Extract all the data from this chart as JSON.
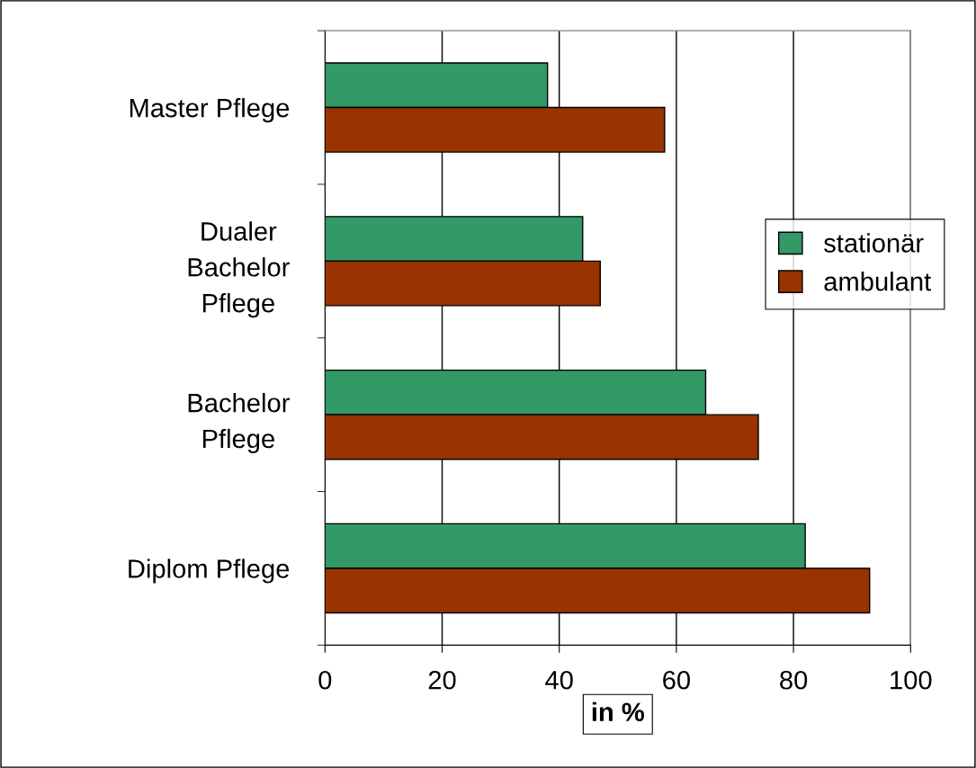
{
  "chart_data": {
    "type": "bar",
    "orientation": "horizontal",
    "categories": [
      "Master Pflege",
      "Dualer\nBachelor\nPflege",
      "Bachelor\nPflege",
      "Diplom Pflege"
    ],
    "series": [
      {
        "name": "stationär",
        "color": "#339966",
        "values": [
          38,
          44,
          65,
          82
        ]
      },
      {
        "name": "ambulant",
        "color": "#993300",
        "values": [
          58,
          47,
          74,
          93
        ]
      }
    ],
    "xlabel": "in %",
    "xlim": [
      0,
      100
    ],
    "xticks": [
      0,
      20,
      40,
      60,
      80,
      100
    ],
    "grid": "x",
    "legend": "right"
  }
}
